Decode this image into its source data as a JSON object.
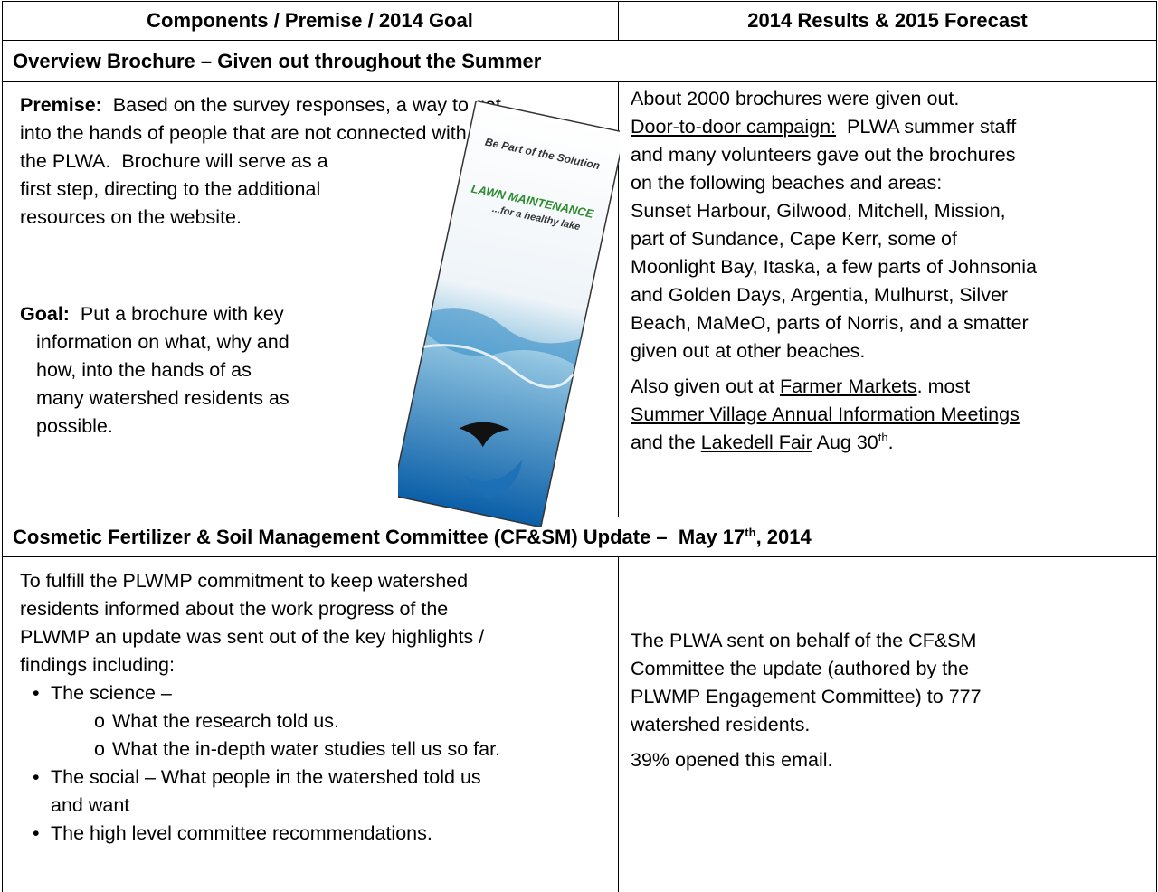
{
  "table": {
    "header": [
      "Components / Premise / 2014 Goal",
      "2014 Results & 2015 Forecast"
    ],
    "sections": [
      {
        "title": [
          {
            "text": "Overview Brochure – Given out throughout the Summer"
          }
        ],
        "left": {
          "premise": [
            [
              {
                "text": "Premise:",
                "style": "bold"
              },
              {
                "text": "  Based on the survey responses, a way to get"
              }
            ],
            [
              {
                "text": "into the hands of people that are not connected with"
              }
            ],
            [
              {
                "text": "the PLWA.  Brochure will serve as a"
              }
            ],
            [
              {
                "text": "first step, directing to the additional"
              }
            ],
            [
              {
                "text": "resources on the website."
              }
            ]
          ],
          "goal": [
            [
              {
                "text": "Goal:",
                "style": "bold"
              },
              {
                "text": "  Put a brochure with key"
              }
            ],
            [
              {
                "text": "information on what, why and"
              }
            ],
            [
              {
                "text": "how, into the hands of as"
              }
            ],
            [
              {
                "text": "many watershed residents as"
              }
            ],
            [
              {
                "text": "possible."
              }
            ]
          ]
        },
        "brochure": {
          "tagline": "Be Part of the Solution",
          "title": "LAWN MAINTENANCE",
          "subtitle": "...for a healthy lake"
        },
        "right": [
          [
            [
              {
                "text": "About 2000 brochures were given out."
              }
            ],
            [
              {
                "text": "Door-to-door campaign:",
                "style": "underline"
              },
              {
                "text": "  PLWA summer staff"
              }
            ],
            [
              {
                "text": "and many volunteers gave out the brochures"
              }
            ],
            [
              {
                "text": "on the following beaches and areas:"
              }
            ],
            [
              {
                "text": "Sunset Harbour, Gilwood, Mitchell, Mission,"
              }
            ],
            [
              {
                "text": "part of Sundance, Cape Kerr, some of"
              }
            ],
            [
              {
                "text": "Moonlight Bay, Itaska, a few parts of Johnsonia"
              }
            ],
            [
              {
                "text": "and Golden Days, Argentia, Mulhurst, Silver"
              }
            ],
            [
              {
                "text": "Beach, MaMeO, parts of Norris, and a smatter"
              }
            ],
            [
              {
                "text": "given out at other beaches."
              }
            ]
          ],
          [
            [
              {
                "text": "Also given out at "
              },
              {
                "text": "Farmer Markets",
                "style": "underline"
              },
              {
                "text": ". most"
              }
            ],
            [
              {
                "text": "Summer Village Annual Information Meetings",
                "style": "underline"
              }
            ],
            [
              {
                "text": "and the "
              },
              {
                "text": "Lakedell Fair",
                "style": "underline"
              },
              {
                "text": " Aug 30"
              },
              {
                "text": "th",
                "style": "sup"
              },
              {
                "text": "."
              }
            ]
          ]
        ]
      },
      {
        "title": [
          {
            "text": "Cosmetic Fertilizer & Soil Management Committee (CF&SM) Update –  May 17"
          },
          {
            "text": "th",
            "style": "sup"
          },
          {
            "text": ", 2014"
          }
        ],
        "left": {
          "intro": [
            [
              {
                "text": "To fulfill the PLWMP commitment to keep watershed"
              }
            ],
            [
              {
                "text": "residents informed about the work progress of the"
              }
            ],
            [
              {
                "text": "PLWMP an update was sent out of the key highlights /"
              }
            ],
            [
              {
                "text": "findings including:"
              }
            ]
          ],
          "bullets": [
            {
              "lines": [
                [
                  {
                    "text": "The science –"
                  }
                ]
              ],
              "sub": [
                [
                  {
                    "text": "What the research told us."
                  }
                ],
                [
                  {
                    "text": "What the in-depth water studies tell us so far."
                  }
                ]
              ]
            },
            {
              "lines": [
                [
                  {
                    "text": "The social – What people in the watershed told us"
                  }
                ],
                [
                  {
                    "text": "and want"
                  }
                ]
              ]
            },
            {
              "lines": [
                [
                  {
                    "text": "The high level committee recommendations."
                  }
                ]
              ]
            }
          ]
        },
        "right": [
          [
            [
              {
                "text": "The PLWA sent on behalf of the CF&SM"
              }
            ],
            [
              {
                "text": "Committee the update (authored by the"
              }
            ],
            [
              {
                "text": "PLWMP Engagement Committee) to 777"
              }
            ],
            [
              {
                "text": "watershed residents."
              }
            ]
          ],
          [
            [
              {
                "text": "39% opened this email."
              }
            ]
          ]
        ]
      }
    ]
  }
}
